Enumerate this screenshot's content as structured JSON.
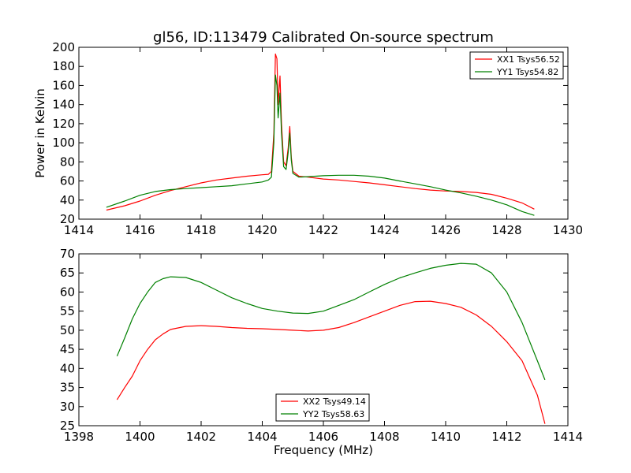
{
  "chart_data": [
    {
      "type": "line",
      "title": "gl56, ID:113479 Calibrated On-source spectrum",
      "xlabel": "",
      "ylabel": "Power in Kelvin",
      "xlim": [
        1414,
        1430
      ],
      "ylim": [
        20,
        200
      ],
      "xticks": [
        1414,
        1416,
        1418,
        1420,
        1422,
        1424,
        1426,
        1428,
        1430
      ],
      "yticks": [
        20,
        40,
        60,
        80,
        100,
        120,
        140,
        160,
        180,
        200
      ],
      "legend_position": "top-right",
      "grid": false,
      "series": [
        {
          "name": "XX1 Tsys56.52",
          "color": "#ff0000",
          "points": [
            [
              1414.9,
              29.5
            ],
            [
              1415.5,
              34
            ],
            [
              1416,
              39
            ],
            [
              1416.5,
              45
            ],
            [
              1417,
              50
            ],
            [
              1417.5,
              54
            ],
            [
              1418,
              58
            ],
            [
              1418.5,
              61
            ],
            [
              1419,
              63
            ],
            [
              1419.5,
              65
            ],
            [
              1420,
              66.5
            ],
            [
              1420.2,
              67
            ],
            [
              1420.3,
              70
            ],
            [
              1420.38,
              110
            ],
            [
              1420.43,
              193
            ],
            [
              1420.48,
              188
            ],
            [
              1420.52,
              140
            ],
            [
              1420.58,
              170
            ],
            [
              1420.63,
              120
            ],
            [
              1420.7,
              80
            ],
            [
              1420.78,
              76
            ],
            [
              1420.85,
              95
            ],
            [
              1420.9,
              117
            ],
            [
              1420.95,
              85
            ],
            [
              1421,
              70
            ],
            [
              1421.2,
              65
            ],
            [
              1421.5,
              64
            ],
            [
              1422,
              62
            ],
            [
              1422.5,
              61
            ],
            [
              1423,
              59.5
            ],
            [
              1423.5,
              58
            ],
            [
              1424,
              56
            ],
            [
              1424.5,
              54
            ],
            [
              1425,
              52
            ],
            [
              1425.5,
              50.5
            ],
            [
              1426,
              49.5
            ],
            [
              1426.5,
              49
            ],
            [
              1427,
              48
            ],
            [
              1427.5,
              46
            ],
            [
              1428,
              42
            ],
            [
              1428.5,
              37
            ],
            [
              1428.9,
              30.5
            ]
          ]
        },
        {
          "name": "YY1 Tsys54.82",
          "color": "#008000",
          "points": [
            [
              1414.9,
              32.5
            ],
            [
              1415.5,
              39
            ],
            [
              1416,
              45
            ],
            [
              1416.5,
              49
            ],
            [
              1417,
              51
            ],
            [
              1417.5,
              52
            ],
            [
              1418,
              53
            ],
            [
              1418.5,
              54
            ],
            [
              1419,
              55
            ],
            [
              1419.5,
              57
            ],
            [
              1420,
              59
            ],
            [
              1420.2,
              61
            ],
            [
              1420.3,
              64
            ],
            [
              1420.38,
              100
            ],
            [
              1420.43,
              171
            ],
            [
              1420.48,
              160
            ],
            [
              1420.52,
              126
            ],
            [
              1420.58,
              152
            ],
            [
              1420.63,
              110
            ],
            [
              1420.7,
              75
            ],
            [
              1420.78,
              72
            ],
            [
              1420.85,
              90
            ],
            [
              1420.9,
              110
            ],
            [
              1420.95,
              82
            ],
            [
              1421,
              68
            ],
            [
              1421.2,
              64
            ],
            [
              1421.5,
              64.5
            ],
            [
              1422,
              65.5
            ],
            [
              1422.5,
              66
            ],
            [
              1423,
              66
            ],
            [
              1423.5,
              65
            ],
            [
              1424,
              63
            ],
            [
              1424.5,
              60
            ],
            [
              1425,
              57
            ],
            [
              1425.5,
              54
            ],
            [
              1426,
              50.5
            ],
            [
              1426.5,
              47.5
            ],
            [
              1427,
              44
            ],
            [
              1427.5,
              40
            ],
            [
              1428,
              35
            ],
            [
              1428.5,
              28
            ],
            [
              1428.9,
              24
            ]
          ]
        }
      ]
    },
    {
      "type": "line",
      "title": "",
      "xlabel": "Frequency (MHz)",
      "ylabel": "",
      "xlim": [
        1398,
        1414
      ],
      "ylim": [
        25,
        70
      ],
      "xticks": [
        1398,
        1400,
        1402,
        1404,
        1406,
        1408,
        1410,
        1412,
        1414
      ],
      "yticks": [
        25,
        30,
        35,
        40,
        45,
        50,
        55,
        60,
        65,
        70
      ],
      "legend_position": "bottom-center",
      "grid": false,
      "series": [
        {
          "name": "XX2 Tsys49.14",
          "color": "#ff0000",
          "points": [
            [
              1399.25,
              31.8
            ],
            [
              1399.5,
              35
            ],
            [
              1399.75,
              38
            ],
            [
              1400,
              42
            ],
            [
              1400.25,
              45
            ],
            [
              1400.5,
              47.5
            ],
            [
              1400.75,
              49
            ],
            [
              1401,
              50.2
            ],
            [
              1401.5,
              51
            ],
            [
              1402,
              51.2
            ],
            [
              1402.5,
              51
            ],
            [
              1403,
              50.7
            ],
            [
              1403.5,
              50.5
            ],
            [
              1404,
              50.4
            ],
            [
              1404.5,
              50.2
            ],
            [
              1405,
              50
            ],
            [
              1405.5,
              49.8
            ],
            [
              1406,
              50
            ],
            [
              1406.5,
              50.7
            ],
            [
              1407,
              52
            ],
            [
              1407.5,
              53.5
            ],
            [
              1408,
              55
            ],
            [
              1408.5,
              56.5
            ],
            [
              1409,
              57.5
            ],
            [
              1409.5,
              57.6
            ],
            [
              1410,
              57
            ],
            [
              1410.5,
              56
            ],
            [
              1411,
              54
            ],
            [
              1411.5,
              51
            ],
            [
              1412,
              47
            ],
            [
              1412.5,
              42
            ],
            [
              1413,
              33
            ],
            [
              1413.25,
              25.5
            ]
          ]
        },
        {
          "name": "YY2 Tsys58.63",
          "color": "#008000",
          "points": [
            [
              1399.25,
              43.2
            ],
            [
              1399.5,
              48
            ],
            [
              1399.75,
              53
            ],
            [
              1400,
              57
            ],
            [
              1400.25,
              60
            ],
            [
              1400.5,
              62.5
            ],
            [
              1400.75,
              63.5
            ],
            [
              1401,
              64
            ],
            [
              1401.5,
              63.8
            ],
            [
              1402,
              62.5
            ],
            [
              1402.5,
              60.5
            ],
            [
              1403,
              58.5
            ],
            [
              1403.5,
              57
            ],
            [
              1404,
              55.7
            ],
            [
              1404.5,
              55
            ],
            [
              1405,
              54.5
            ],
            [
              1405.5,
              54.4
            ],
            [
              1406,
              55
            ],
            [
              1406.5,
              56.5
            ],
            [
              1407,
              58
            ],
            [
              1407.5,
              60
            ],
            [
              1408,
              62
            ],
            [
              1408.5,
              63.7
            ],
            [
              1409,
              65
            ],
            [
              1409.5,
              66.2
            ],
            [
              1410,
              67
            ],
            [
              1410.5,
              67.5
            ],
            [
              1411,
              67.3
            ],
            [
              1411.5,
              65
            ],
            [
              1412,
              60
            ],
            [
              1412.5,
              52
            ],
            [
              1413,
              42
            ],
            [
              1413.25,
              37
            ]
          ]
        }
      ]
    }
  ]
}
